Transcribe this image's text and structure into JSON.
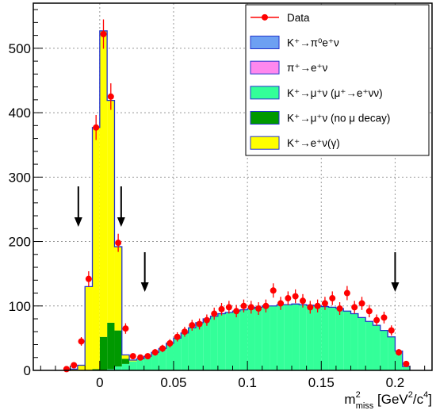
{
  "chart_data": {
    "type": "bar",
    "title": "",
    "xlabel": "m²_miss [GeV²/c⁴]",
    "xlabel_parts": {
      "base": "m",
      "superscript": "2",
      "subscript": "miss",
      "unit_prefix": " [GeV",
      "unit_sup1": "2",
      "unit_mid": "/c",
      "unit_sup2": "4",
      "unit_suffix": "]"
    },
    "ylabel": "",
    "xlim": [
      -0.045,
      0.225
    ],
    "ylim": [
      0,
      570
    ],
    "grid": true,
    "x_ticks": [
      0,
      0.05,
      0.1,
      0.15,
      0.2
    ],
    "x_tick_labels": [
      "0",
      "0.05",
      "0.1",
      "0.15",
      "0.2"
    ],
    "y_ticks": [
      0,
      100,
      200,
      300,
      400,
      500
    ],
    "y_tick_labels": [
      "0",
      "100",
      "200",
      "300",
      "400",
      "500"
    ],
    "bin_width": 0.005,
    "bin_centers": [
      -0.0175,
      -0.0125,
      -0.0075,
      -0.0025,
      0.0025,
      0.0075,
      0.0125,
      0.0175,
      0.0225,
      0.0275,
      0.0325,
      0.0375,
      0.0425,
      0.0475,
      0.0525,
      0.0575,
      0.0625,
      0.0675,
      0.0725,
      0.0775,
      0.0825,
      0.0875,
      0.0925,
      0.0975,
      0.1025,
      0.1075,
      0.1125,
      0.1175,
      0.1225,
      0.1275,
      0.1325,
      0.1375,
      0.1425,
      0.1475,
      0.1525,
      0.1575,
      0.1625,
      0.1675,
      0.1725,
      0.1775,
      0.1825,
      0.1875,
      0.1925,
      0.1975,
      0.2025,
      0.2075
    ],
    "stack_order": [
      "K+->pi0 e+ nu",
      "pi+->e+ nu",
      "K+->mu+ nu (mu decay)",
      "K+->mu+ nu (no mu decay)",
      "K+->e+ nu (gamma)"
    ],
    "series": [
      {
        "name": "K+->pi0 e+ nu",
        "color": "#6da0f2",
        "values": [
          0,
          0,
          0,
          0,
          0,
          0,
          0,
          0,
          0,
          0,
          0,
          0,
          0,
          0,
          0,
          0,
          0,
          0,
          0,
          0,
          0,
          0,
          0,
          0,
          0,
          0,
          0,
          0,
          0,
          0,
          0,
          0,
          0,
          0,
          0,
          0,
          0,
          0,
          0,
          0,
          0,
          0,
          0,
          0,
          0,
          0
        ]
      },
      {
        "name": "pi+->e+ nu",
        "color": "#ff88ee",
        "values": [
          0,
          0,
          0,
          0,
          0,
          0,
          0,
          0,
          0,
          0,
          0,
          0,
          0,
          0,
          0,
          0,
          0,
          0,
          0,
          0,
          0,
          0,
          0,
          0,
          0,
          0,
          0,
          0,
          0,
          0,
          0,
          0,
          0,
          0,
          0,
          0,
          0,
          0,
          0,
          0,
          0,
          0,
          0,
          0,
          0,
          0
        ]
      },
      {
        "name": "K+->mu+ nu (mu decay)",
        "color": "#33ff99",
        "values": [
          0,
          0,
          0,
          0,
          0,
          2,
          6,
          10,
          14,
          18,
          22,
          28,
          34,
          42,
          50,
          58,
          66,
          74,
          80,
          84,
          88,
          90,
          92,
          94,
          96,
          98,
          100,
          100,
          102,
          102,
          103,
          102,
          101,
          100,
          99,
          98,
          96,
          92,
          88,
          82,
          76,
          70,
          62,
          52,
          30,
          6
        ]
      },
      {
        "name": "K+->mu+ nu (no mu decay)",
        "color": "#009900",
        "values": [
          0,
          0,
          0,
          2,
          52,
          72,
          56,
          8,
          0,
          0,
          0,
          0,
          0,
          0,
          0,
          0,
          0,
          0,
          0,
          0,
          0,
          0,
          0,
          0,
          0,
          0,
          0,
          0,
          0,
          0,
          0,
          0,
          0,
          0,
          0,
          0,
          0,
          0,
          0,
          0,
          0,
          0,
          0,
          0,
          0,
          0
        ]
      },
      {
        "name": "K+->e+ nu (gamma)",
        "color": "#ffff00",
        "values": [
          2,
          8,
          130,
          375,
          475,
          345,
          130,
          6,
          2,
          0,
          0,
          0,
          0,
          0,
          0,
          0,
          0,
          0,
          0,
          0,
          0,
          0,
          0,
          0,
          0,
          0,
          0,
          0,
          0,
          0,
          0,
          0,
          0,
          0,
          0,
          0,
          0,
          0,
          0,
          0,
          0,
          0,
          0,
          0,
          0,
          0
        ]
      }
    ],
    "data_points": {
      "name": "Data",
      "color": "#ff0000",
      "x": [
        -0.0225,
        -0.0175,
        -0.0125,
        -0.0075,
        -0.0025,
        0.0025,
        0.0075,
        0.0125,
        0.0175,
        0.0225,
        0.0275,
        0.0325,
        0.0375,
        0.0425,
        0.0475,
        0.0525,
        0.0575,
        0.0625,
        0.0675,
        0.0725,
        0.0775,
        0.0825,
        0.0875,
        0.0925,
        0.0975,
        0.1025,
        0.1075,
        0.1125,
        0.1175,
        0.1225,
        0.1275,
        0.1325,
        0.1375,
        0.1425,
        0.1475,
        0.1525,
        0.1575,
        0.1625,
        0.1675,
        0.1725,
        0.1775,
        0.1825,
        0.1875,
        0.1925,
        0.1975,
        0.2025,
        0.2075
      ],
      "y": [
        2,
        8,
        45,
        142,
        377,
        522,
        425,
        198,
        65,
        22,
        20,
        22,
        28,
        34,
        42,
        52,
        60,
        70,
        72,
        78,
        88,
        95,
        98,
        92,
        100,
        98,
        96,
        100,
        124,
        104,
        112,
        115,
        108,
        98,
        100,
        104,
        112,
        96,
        120,
        98,
        104,
        92,
        78,
        82,
        62,
        28,
        10
      ],
      "err": [
        1.4,
        2.8,
        6.7,
        11.9,
        19.4,
        22.8,
        20.6,
        14.1,
        8.1,
        4.7,
        4.5,
        4.7,
        5.3,
        5.8,
        6.5,
        7.2,
        7.7,
        8.4,
        8.5,
        8.8,
        9.4,
        9.7,
        9.9,
        9.6,
        10,
        9.9,
        9.8,
        10,
        11.1,
        10.2,
        10.6,
        10.7,
        10.4,
        9.9,
        10,
        10.2,
        10.6,
        9.8,
        11,
        9.9,
        10.2,
        9.6,
        8.8,
        9.1,
        7.9,
        5.3,
        3.2
      ]
    },
    "arrows_x": [
      -0.0145,
      0.0145,
      0.0305,
      0.2
    ],
    "legend": {
      "position": "top-right",
      "entries": [
        {
          "key": "data",
          "label": "Data"
        },
        {
          "key": "kpi0",
          "label_html": "K⁺→π⁰e⁺ν"
        },
        {
          "key": "pienu",
          "label_html": "π⁺→e⁺ν"
        },
        {
          "key": "kmunu_decay",
          "label_html": "K⁺→μ⁺ν (μ⁺→e⁺νν)"
        },
        {
          "key": "kmunu_nodecay",
          "label_html": "K⁺→μ⁺ν (no μ decay)"
        },
        {
          "key": "kenu",
          "label_html": "K⁺→e⁺ν(γ)"
        }
      ]
    }
  }
}
